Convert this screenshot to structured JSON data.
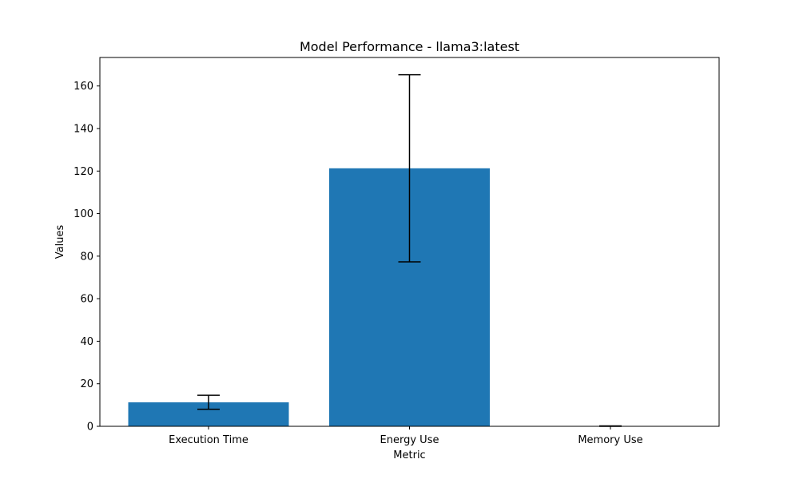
{
  "chart_data": {
    "type": "bar",
    "title": "Model Performance - llama3:latest",
    "xlabel": "Metric",
    "ylabel": "Values",
    "categories": [
      "Execution Time",
      "Energy Use",
      "Memory Use"
    ],
    "values": [
      11.3,
      121.3,
      0.1
    ],
    "errors": [
      3.3,
      44.0,
      0.1
    ],
    "ylim": [
      0,
      173.4
    ],
    "yticks": [
      0,
      20,
      40,
      60,
      80,
      100,
      120,
      140,
      160
    ],
    "grid": false,
    "bar_color": "#1f77b4",
    "error_color": "#000000"
  }
}
